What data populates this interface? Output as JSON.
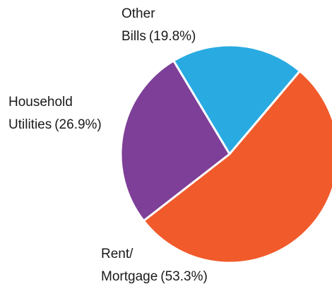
{
  "chart_data": {
    "type": "pie",
    "categories": [
      [
        "Other",
        "Bills"
      ],
      [
        "Rent/",
        "Mortgage"
      ],
      [
        "Household",
        "Utilities"
      ]
    ],
    "values": [
      19.8,
      53.3,
      26.9
    ],
    "value_labels": [
      "(19.8%)",
      "(53.3%)",
      "(26.9%)"
    ],
    "colors": [
      "#29abe2",
      "#f15a2b",
      "#7d3f98"
    ]
  }
}
